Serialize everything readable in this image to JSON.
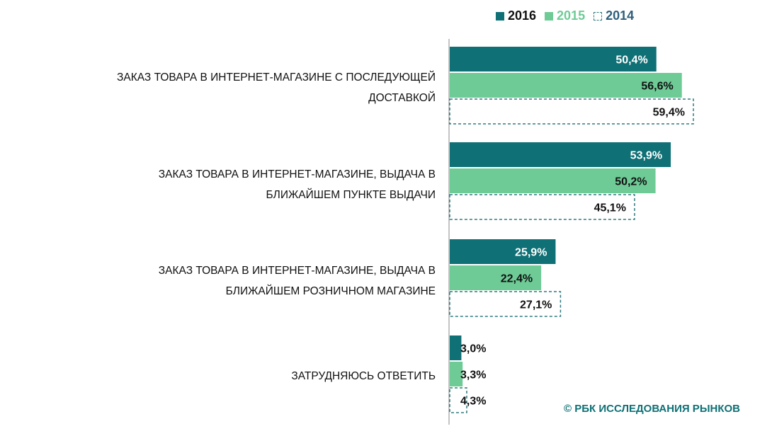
{
  "legend": [
    {
      "name": "2016",
      "color": "#0f7075",
      "style": "solid"
    },
    {
      "name": "2015",
      "color": "#6ecb96",
      "style": "solid"
    },
    {
      "name": "2014",
      "color": "#2f7a7e",
      "style": "dashed"
    }
  ],
  "chart_data": {
    "type": "bar",
    "orientation": "horizontal",
    "categories": [
      [
        "ЗАКАЗ ТОВАРА В ИНТЕРНЕТ-МАГАЗИНЕ С ПОСЛЕДУЮЩЕЙ",
        "ДОСТАВКОЙ"
      ],
      [
        "ЗАКАЗ ТОВАРА В ИНТЕРНЕТ-МАГАЗИНЕ, ВЫДАЧА В",
        "БЛИЖАЙШЕМ ПУНКТЕ ВЫДАЧИ"
      ],
      [
        "ЗАКАЗ ТОВАРА В ИНТЕРНЕТ-МАГАЗИНЕ, ВЫДАЧА В",
        "БЛИЖАЙШЕМ РОЗНИЧНОМ МАГАЗИНЕ"
      ],
      [
        "ЗАТРУДНЯЮСЬ ОТВЕТИТЬ"
      ]
    ],
    "series": [
      {
        "name": "2016",
        "values": [
          50.4,
          53.9,
          25.9,
          3.0
        ],
        "labels": [
          "50,4%",
          "53,9%",
          "25,9%",
          "3,0%"
        ]
      },
      {
        "name": "2015",
        "values": [
          56.6,
          50.2,
          22.4,
          3.3
        ],
        "labels": [
          "56,6%",
          "50,2%",
          "22,4%",
          "3,3%"
        ]
      },
      {
        "name": "2014",
        "values": [
          59.4,
          45.1,
          27.1,
          4.3
        ],
        "labels": [
          "59,4%",
          "45,1%",
          "27,1%",
          "4,3%"
        ]
      }
    ],
    "xlim": [
      0,
      59.4
    ],
    "legend_position": "top-right"
  },
  "footer": {
    "text": "© РБК ИССЛЕДОВАНИЯ РЫНКОВ"
  }
}
